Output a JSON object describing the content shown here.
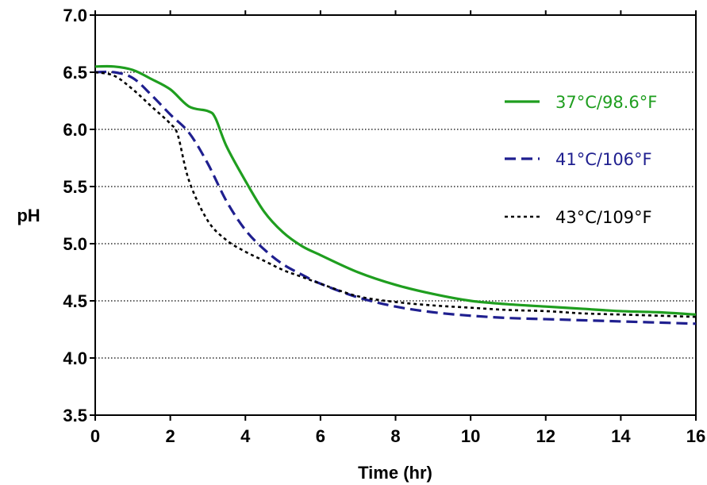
{
  "chart_data": {
    "type": "line",
    "title": "",
    "xlabel": "Time (hr)",
    "ylabel": "pH",
    "xlim": [
      0,
      16
    ],
    "ylim": [
      3.5,
      7.0
    ],
    "x_ticks": [
      "0",
      "2",
      "4",
      "6",
      "8",
      "10",
      "12",
      "14",
      "16"
    ],
    "y_ticks": [
      "3.5",
      "4.0",
      "4.5",
      "5.0",
      "5.5",
      "6.0",
      "6.5",
      "7.0"
    ],
    "grid": "horizontal dotted",
    "legend_position": "top-right",
    "series": [
      {
        "name": "37°C/98.6°F",
        "color": "#1f9e1f",
        "line_style": "solid",
        "x": [
          0,
          0.5,
          1,
          1.5,
          2,
          2.5,
          3,
          3.2,
          3.5,
          4,
          4.5,
          5,
          5.5,
          6,
          7,
          8,
          9,
          10,
          11,
          12,
          13,
          14,
          15,
          16
        ],
        "y": [
          6.55,
          6.55,
          6.52,
          6.44,
          6.35,
          6.2,
          6.16,
          6.1,
          5.85,
          5.55,
          5.28,
          5.1,
          4.98,
          4.9,
          4.75,
          4.64,
          4.56,
          4.5,
          4.47,
          4.45,
          4.43,
          4.41,
          4.4,
          4.38
        ]
      },
      {
        "name": "41°C/106°F",
        "color": "#1f1f8f",
        "line_style": "dashed",
        "x": [
          0,
          0.5,
          1,
          1.5,
          2,
          2.5,
          3,
          3.5,
          4,
          4.5,
          5,
          5.5,
          6,
          7,
          8,
          9,
          10,
          11,
          12,
          13,
          14,
          15,
          16
        ],
        "y": [
          6.5,
          6.5,
          6.45,
          6.3,
          6.13,
          5.97,
          5.7,
          5.37,
          5.12,
          4.95,
          4.82,
          4.73,
          4.65,
          4.53,
          4.45,
          4.4,
          4.37,
          4.35,
          4.34,
          4.33,
          4.32,
          4.31,
          4.3
        ]
      },
      {
        "name": "43°C/109°F",
        "color": "#000000",
        "line_style": "dotted",
        "x": [
          0,
          0.5,
          1,
          1.5,
          2,
          2.2,
          2.5,
          3,
          3.5,
          4,
          4.5,
          5,
          5.5,
          6,
          7,
          8,
          9,
          10,
          11,
          12,
          13,
          14,
          15,
          16
        ],
        "y": [
          6.5,
          6.47,
          6.35,
          6.2,
          6.05,
          5.95,
          5.55,
          5.2,
          5.03,
          4.93,
          4.85,
          4.77,
          4.71,
          4.65,
          4.54,
          4.49,
          4.46,
          4.44,
          4.42,
          4.41,
          4.39,
          4.38,
          4.37,
          4.36
        ]
      }
    ]
  }
}
